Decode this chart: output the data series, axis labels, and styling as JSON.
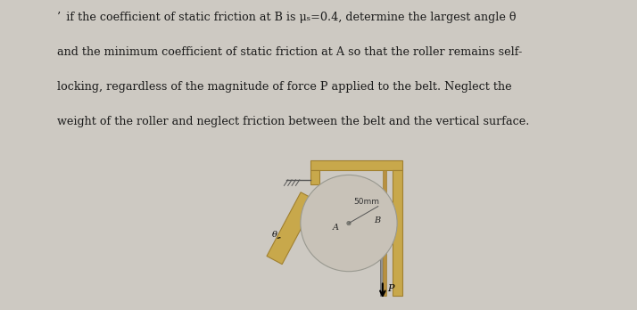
{
  "bg_color": "#cdc9c2",
  "text_color": "#1a1a1a",
  "title_lines": [
    "if the coefficient of static friction at B is μₛ=0.4, determine the largest angle θ",
    "and the minimum coefficient of static friction at A so that the roller remains self-",
    "locking, regardless of the magnitude of force P applied to the belt. Neglect the",
    "weight of the roller and neglect friction between the belt and the vertical surface."
  ],
  "wood_color": "#c8a84b",
  "wood_edge": "#a08030",
  "wood_inner": "#b89040",
  "roller_color": "#c8c2b8",
  "roller_edge": "#999990",
  "label_50mm": "50mm",
  "label_A": "A",
  "label_B": "B",
  "label_theta": "θ",
  "label_P": "P"
}
